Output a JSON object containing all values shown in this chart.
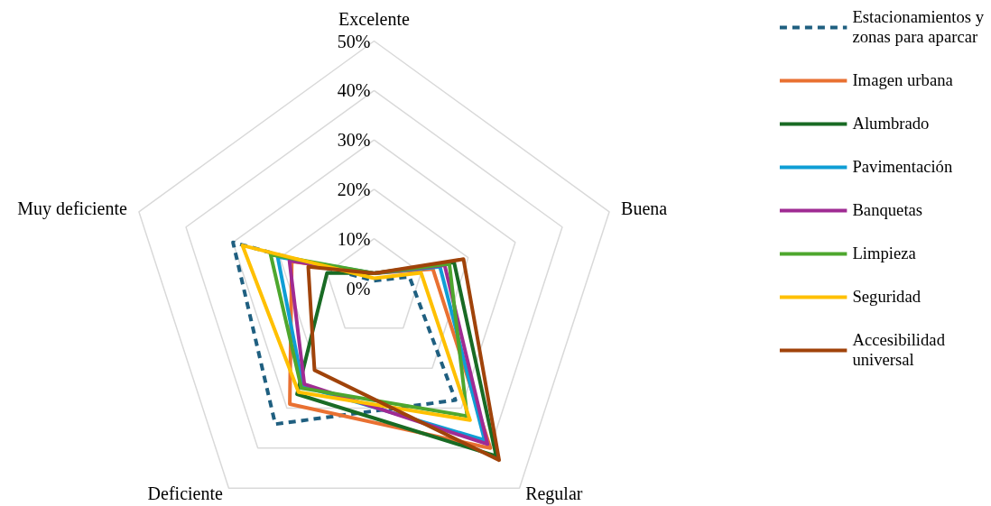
{
  "chart_data": {
    "type": "radar",
    "categories": [
      "Excelente",
      "Buena",
      "Regular",
      "Deficiente",
      "Muy deficiente"
    ],
    "ylim": [
      0,
      50
    ],
    "yticks": [
      {
        "value": 0,
        "label": "0%"
      },
      {
        "value": 10,
        "label": "10%"
      },
      {
        "value": 20,
        "label": "20%"
      },
      {
        "value": 30,
        "label": "30%"
      },
      {
        "value": 40,
        "label": "40%"
      },
      {
        "value": 50,
        "label": "50%"
      }
    ],
    "grid": true,
    "legend": "right",
    "series": [
      {
        "name": "Estacionamientos y zonas para aparcar",
        "color": "#1f5f80",
        "line_style": "dashed",
        "values": [
          1.5,
          7.5,
          28,
          34,
          30
        ]
      },
      {
        "name": "Imagen urbana",
        "color": "#e97132",
        "line_style": "solid",
        "values": [
          3,
          12.5,
          40,
          29,
          17.5
        ]
      },
      {
        "name": "Alumbrado",
        "color": "#196b24",
        "line_style": "solid",
        "values": [
          3,
          17,
          42,
          26.5,
          10
        ]
      },
      {
        "name": "Pavimentación",
        "color": "#0f9ed5",
        "line_style": "solid",
        "values": [
          3,
          14,
          38,
          24.5,
          20.5
        ]
      },
      {
        "name": "Banquetas",
        "color": "#a02b93",
        "line_style": "solid",
        "values": [
          3,
          15,
          39,
          24,
          18
        ]
      },
      {
        "name": "Limpieza",
        "color": "#4ea72e",
        "line_style": "solid",
        "values": [
          3,
          16,
          32,
          25,
          22
        ]
      },
      {
        "name": "Seguridad",
        "color": "#ffc000",
        "line_style": "solid",
        "values": [
          2,
          10,
          33,
          26,
          28
        ]
      },
      {
        "name": "Accesibilidad universal",
        "color": "#a0430a",
        "line_style": "solid",
        "values": [
          3,
          19,
          43,
          20.5,
          14
        ]
      }
    ]
  }
}
